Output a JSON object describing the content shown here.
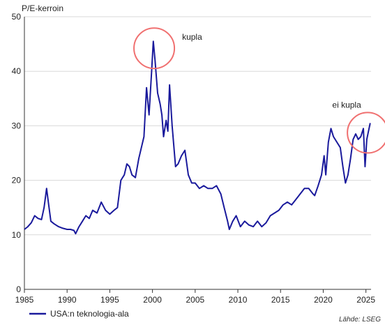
{
  "chart_data": {
    "type": "line",
    "ylabel": "P/E-kerroin",
    "xlabel": "",
    "ylim": [
      0,
      50
    ],
    "xlim": [
      1985,
      2025.6
    ],
    "yticks": [
      0,
      10,
      20,
      30,
      40,
      50
    ],
    "xticks": [
      1985,
      1990,
      1995,
      2000,
      2005,
      2010,
      2015,
      2020,
      2025
    ],
    "grid": "horizontal",
    "legend_position": "bottom-left",
    "source": "Lähde: LSEG",
    "colors": {
      "line": "#1a1a9c",
      "annotation_circle": "#f07070",
      "grid": "#d9d9d9"
    },
    "series": [
      {
        "name": "USA:n teknologia-ala",
        "x": [
          1985.0,
          1985.4,
          1985.8,
          1986.2,
          1986.6,
          1987.0,
          1987.3,
          1987.6,
          1987.8,
          1988.1,
          1988.5,
          1989.0,
          1989.5,
          1990.0,
          1990.4,
          1990.8,
          1991.0,
          1991.4,
          1991.8,
          1992.2,
          1992.6,
          1993.0,
          1993.5,
          1994.0,
          1994.5,
          1995.0,
          1995.5,
          1995.9,
          1996.3,
          1996.7,
          1997.0,
          1997.3,
          1997.6,
          1998.0,
          1998.4,
          1998.7,
          1999.0,
          1999.3,
          1999.6,
          1999.9,
          2000.1,
          2000.3,
          2000.6,
          2000.9,
          2001.1,
          2001.3,
          2001.6,
          2001.8,
          2002.0,
          2002.3,
          2002.7,
          2003.0,
          2003.4,
          2003.8,
          2004.2,
          2004.6,
          2005.0,
          2005.5,
          2006.0,
          2006.5,
          2007.0,
          2007.5,
          2008.0,
          2008.4,
          2008.8,
          2009.0,
          2009.4,
          2009.8,
          2010.3,
          2010.8,
          2011.3,
          2011.8,
          2012.3,
          2012.8,
          2013.3,
          2013.8,
          2014.3,
          2014.8,
          2015.3,
          2015.8,
          2016.3,
          2016.8,
          2017.3,
          2017.8,
          2018.3,
          2018.8,
          2019.0,
          2019.4,
          2019.8,
          2020.1,
          2020.3,
          2020.6,
          2020.9,
          2021.2,
          2021.6,
          2022.0,
          2022.3,
          2022.6,
          2022.9,
          2023.2,
          2023.5,
          2023.8,
          2024.1,
          2024.4,
          2024.7,
          2024.9,
          2025.1,
          2025.3,
          2025.5
        ],
        "values": [
          11.0,
          11.5,
          12.2,
          13.5,
          13.0,
          12.8,
          15.0,
          18.5,
          16.0,
          12.5,
          12.0,
          11.5,
          11.2,
          11.0,
          11.0,
          10.8,
          10.2,
          11.5,
          12.5,
          13.5,
          13.0,
          14.5,
          14.0,
          16.0,
          14.5,
          13.8,
          14.5,
          15.0,
          20.0,
          21.0,
          23.0,
          22.5,
          21.0,
          20.5,
          24.0,
          26.0,
          28.0,
          37.0,
          32.0,
          40.0,
          45.5,
          42.0,
          36.0,
          34.0,
          32.0,
          28.0,
          31.0,
          29.0,
          37.5,
          30.0,
          22.5,
          23.0,
          24.5,
          25.5,
          21.0,
          19.5,
          19.5,
          18.5,
          19.0,
          18.5,
          18.5,
          19.0,
          17.5,
          15.0,
          12.5,
          11.0,
          12.5,
          13.5,
          11.5,
          12.5,
          11.8,
          11.5,
          12.5,
          11.5,
          12.2,
          13.5,
          14.0,
          14.5,
          15.5,
          16.0,
          15.5,
          16.5,
          17.5,
          18.5,
          18.5,
          17.5,
          17.2,
          19.0,
          21.0,
          24.5,
          21.0,
          27.0,
          29.5,
          28.0,
          27.0,
          26.0,
          22.5,
          19.5,
          21.0,
          24.0,
          27.5,
          28.5,
          27.5,
          28.0,
          29.5,
          22.5,
          27.5,
          29.0,
          30.5
        ]
      }
    ],
    "annotations": [
      {
        "label": "kupla",
        "x": 2000.2,
        "y": 45.5
      },
      {
        "label": "ei kupla",
        "x": 2025.2,
        "y": 30.0
      }
    ]
  }
}
